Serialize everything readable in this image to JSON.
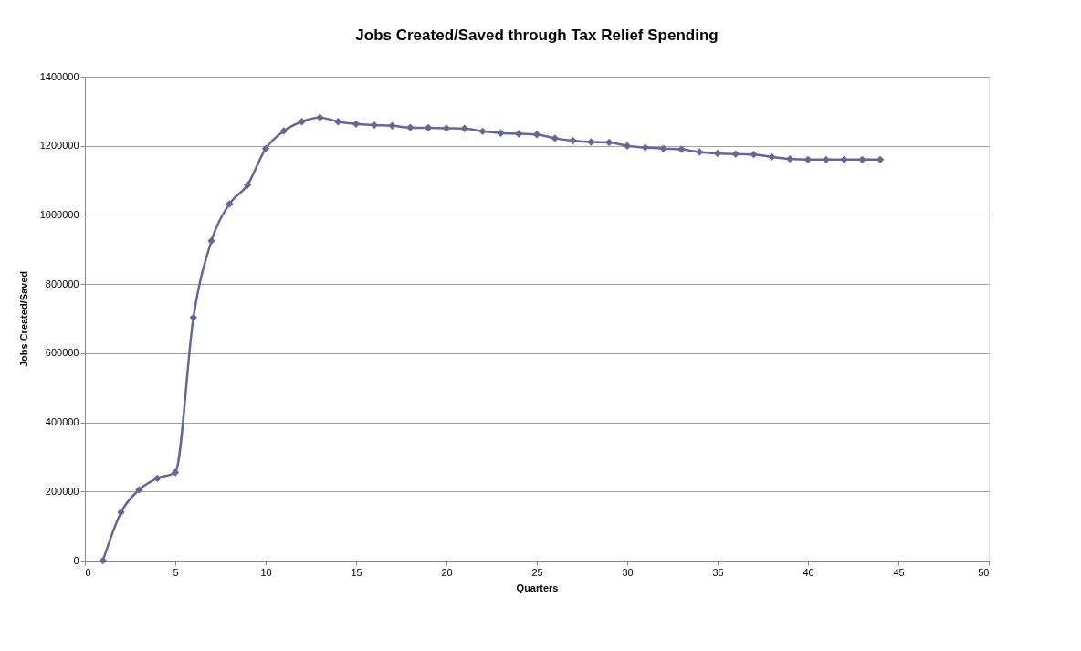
{
  "chart_data": {
    "type": "line",
    "title": "Jobs Created/Saved through Tax Relief Spending",
    "xlabel": "Quarters",
    "ylabel": "Jobs Created/Saved",
    "x": [
      1,
      2,
      3,
      4,
      5,
      6,
      7,
      8,
      9,
      10,
      11,
      12,
      13,
      14,
      15,
      16,
      17,
      18,
      19,
      20,
      21,
      22,
      23,
      24,
      25,
      26,
      27,
      28,
      29,
      30,
      31,
      32,
      33,
      34,
      35,
      36,
      37,
      38,
      39,
      40,
      41,
      42,
      43,
      44
    ],
    "series": [
      {
        "color": "#666699",
        "values": [
          0,
          140000,
          205000,
          238000,
          255000,
          703000,
          925000,
          1032000,
          1087000,
          1192000,
          1243000,
          1270000,
          1282000,
          1270000,
          1263000,
          1260000,
          1258000,
          1253000,
          1252000,
          1251000,
          1250000,
          1242000,
          1237000,
          1235000,
          1233000,
          1222000,
          1215000,
          1211000,
          1210000,
          1200000,
          1195000,
          1192000,
          1190000,
          1182000,
          1178000,
          1176000,
          1175000,
          1168000,
          1162000,
          1160000,
          1160000,
          1160000,
          1160000,
          1160000
        ]
      }
    ],
    "xlim": [
      0,
      50
    ],
    "xticks": [
      0,
      5,
      10,
      15,
      20,
      25,
      30,
      35,
      40,
      45,
      50
    ],
    "ylim": [
      0,
      1400000
    ],
    "yticks": [
      0,
      200000,
      400000,
      600000,
      800000,
      1000000,
      1200000,
      1400000
    ],
    "grid": "y",
    "marker": "diamond",
    "line_style": "solid"
  }
}
